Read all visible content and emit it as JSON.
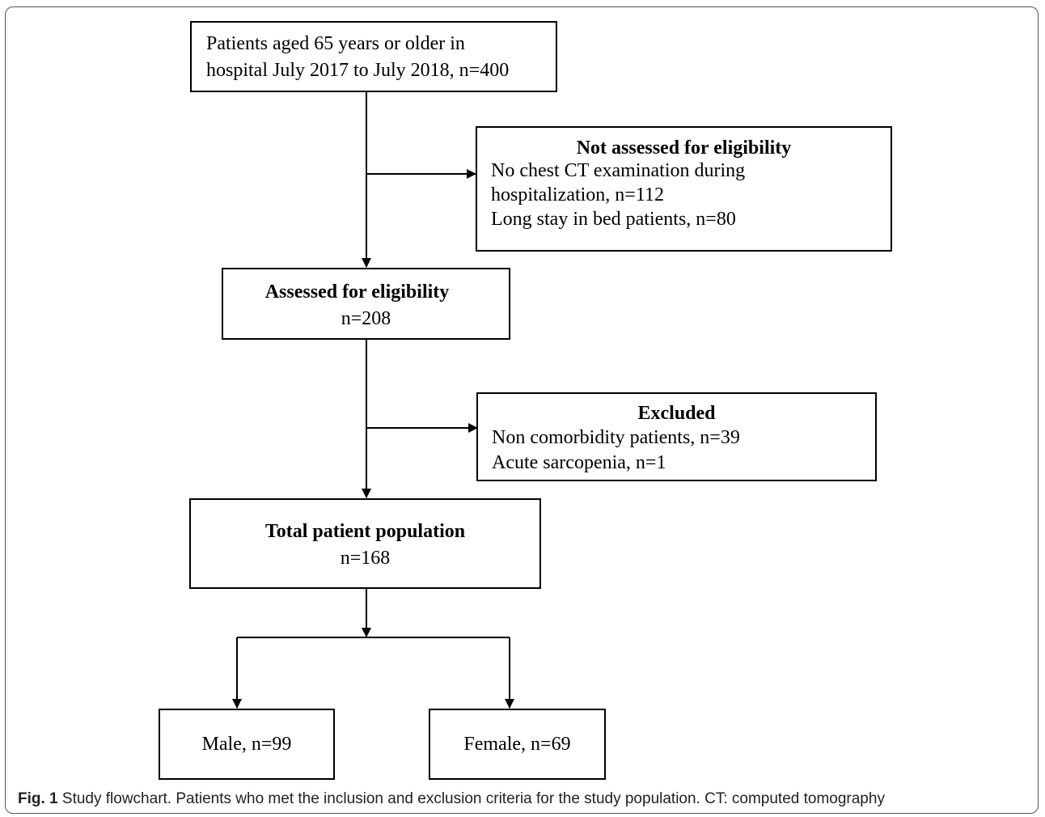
{
  "boxes": {
    "start": {
      "line1": "Patients aged 65 years or older in",
      "line2": "hospital July 2017 to July 2018, n=400"
    },
    "not_assessed": {
      "title": "Not assessed for eligibility",
      "line1": "No chest CT examination during",
      "line2": "hospitalization, n=112",
      "line3": "Long stay in bed patients, n=80"
    },
    "assessed": {
      "title": "Assessed for eligibility",
      "count": "n=208"
    },
    "excluded": {
      "title": "Excluded",
      "line1": "Non comorbidity patients, n=39",
      "line2": "Acute sarcopenia, n=1"
    },
    "total": {
      "title": "Total patient population",
      "count": "n=168"
    },
    "male": {
      "label": "Male, n=99"
    },
    "female": {
      "label": "Female, n=69"
    }
  },
  "caption": {
    "label": "Fig. 1",
    "text": " Study flowchart. Patients who met the inclusion and exclusion criteria for the study population. CT: computed tomography"
  }
}
